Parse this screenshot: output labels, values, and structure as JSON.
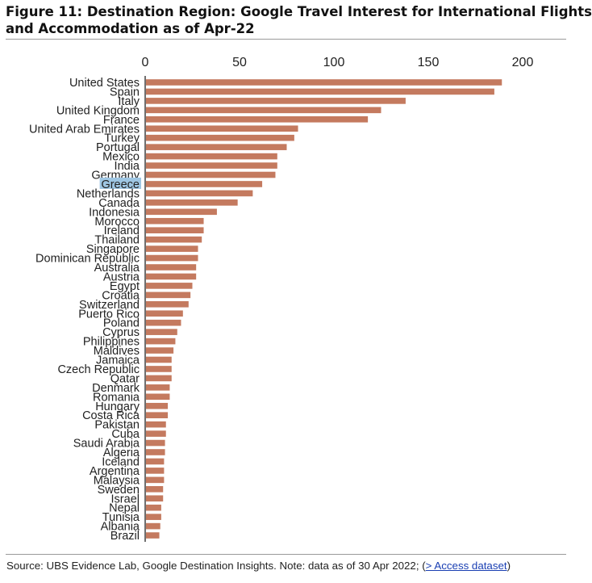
{
  "figure": {
    "title_line1": "Figure 11: Destination Region: Google Travel Interest for International Flights",
    "title_line2": "and Accommodation as of Apr-22"
  },
  "source": {
    "text": "Source: UBS Evidence Lab, Google Destination Insights. Note: data as of 30 Apr 2022;",
    "link_open": "(",
    "link_text": "> Access dataset",
    "link_close": ")"
  },
  "chart_data": {
    "type": "bar",
    "orientation": "horizontal",
    "title": "",
    "xlabel": "",
    "ylabel": "",
    "xlim": [
      0,
      200
    ],
    "ticks": [
      0,
      50,
      100,
      150,
      200
    ],
    "axis_position": "top",
    "grid": false,
    "bar_color": "#c47a5f",
    "highlight_color": "#9ec6e3",
    "highlighted_category": "Greece",
    "categories": [
      "United States",
      "Spain",
      "Italy",
      "United Kingdom",
      "France",
      "United Arab Emirates",
      "Turkey",
      "Portugal",
      "Mexico",
      "India",
      "Germany",
      "Greece",
      "Netherlands",
      "Canada",
      "Indonesia",
      "Morocco",
      "Ireland",
      "Thailand",
      "Singapore",
      "Dominican Republic",
      "Australia",
      "Austria",
      "Egypt",
      "Croatia",
      "Switzerland",
      "Puerto Rico",
      "Poland",
      "Cyprus",
      "Philippines",
      "Maldives",
      "Jamaica",
      "Czech Republic",
      "Qatar",
      "Denmark",
      "Romania",
      "Hungary",
      "Costa Rica",
      "Pakistan",
      "Cuba",
      "Saudi Arabia",
      "Algeria",
      "Iceland",
      "Argentina",
      "Malaysia",
      "Sweden",
      "Israel",
      "Nepal",
      "Tunisia",
      "Albania",
      "Brazil"
    ],
    "values": [
      189,
      185,
      138,
      125,
      118,
      81,
      79,
      75,
      70,
      70,
      69,
      62,
      57,
      49,
      38,
      31,
      31,
      30,
      28,
      28,
      27,
      27,
      25,
      24,
      23,
      20,
      19,
      17,
      16,
      15,
      14,
      14,
      14,
      13,
      13,
      12,
      12,
      11,
      11,
      10.5,
      10.5,
      10,
      10,
      10,
      9.5,
      9.5,
      8.5,
      8.5,
      8,
      7.5
    ]
  }
}
